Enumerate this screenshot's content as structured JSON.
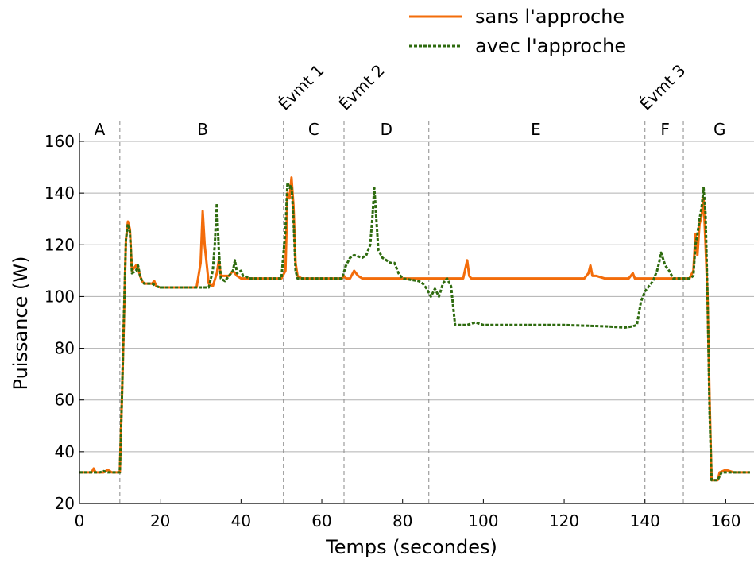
{
  "chart_data": {
    "type": "line",
    "title": "",
    "xlabel": "Temps (secondes)",
    "ylabel": "Puissance (W)",
    "xlim": [
      0,
      167
    ],
    "ylim": [
      20,
      162
    ],
    "xticks": [
      0,
      20,
      40,
      60,
      80,
      100,
      120,
      140,
      160
    ],
    "yticks": [
      20,
      40,
      60,
      80,
      100,
      120,
      140,
      160
    ],
    "grid": "horizontal",
    "legend_position": "top-right",
    "phase_boundaries": [
      10,
      50.5,
      65.5,
      86.5,
      140,
      149.5
    ],
    "phases": [
      {
        "label": "A",
        "x": 5
      },
      {
        "label": "B",
        "x": 30.5
      },
      {
        "label": "C",
        "x": 58
      },
      {
        "label": "D",
        "x": 76
      },
      {
        "label": "E",
        "x": 113
      },
      {
        "label": "F",
        "x": 145
      },
      {
        "label": "G",
        "x": 158.5
      }
    ],
    "events": [
      {
        "label": "Évmt 1",
        "x": 50.5
      },
      {
        "label": "Évmt 2",
        "x": 65.5
      },
      {
        "label": "Évmt 3",
        "x": 140
      }
    ],
    "series": [
      {
        "name": "sans l'approche",
        "color": "#f36c0a",
        "dash": "solid",
        "points": [
          [
            0,
            32
          ],
          [
            3,
            32
          ],
          [
            3.5,
            33.5
          ],
          [
            4,
            32
          ],
          [
            6,
            32
          ],
          [
            7,
            33
          ],
          [
            8,
            32
          ],
          [
            10,
            32
          ],
          [
            10.5,
            60
          ],
          [
            11,
            90
          ],
          [
            11.5,
            122
          ],
          [
            12,
            129
          ],
          [
            12.5,
            126
          ],
          [
            13,
            110
          ],
          [
            14,
            112
          ],
          [
            14.5,
            111
          ],
          [
            15,
            108
          ],
          [
            15.5,
            106
          ],
          [
            16,
            105
          ],
          [
            18,
            105
          ],
          [
            18.5,
            106
          ],
          [
            19,
            104
          ],
          [
            20,
            103.5
          ],
          [
            28,
            103.5
          ],
          [
            29,
            103.5
          ],
          [
            30,
            113
          ],
          [
            30.5,
            133
          ],
          [
            31,
            120
          ],
          [
            32,
            105
          ],
          [
            33,
            104
          ],
          [
            34,
            109
          ],
          [
            34.5,
            114
          ],
          [
            35,
            108
          ],
          [
            37,
            108
          ],
          [
            38,
            110
          ],
          [
            39,
            108
          ],
          [
            40,
            107
          ],
          [
            50,
            107
          ],
          [
            51,
            110
          ],
          [
            51.5,
            140
          ],
          [
            52,
            138
          ],
          [
            52.5,
            146
          ],
          [
            53,
            135
          ],
          [
            53.5,
            113
          ],
          [
            54,
            108
          ],
          [
            55,
            107
          ],
          [
            65,
            107
          ],
          [
            65.5,
            108
          ],
          [
            66,
            107
          ],
          [
            67,
            107
          ],
          [
            68,
            110
          ],
          [
            69,
            108
          ],
          [
            70,
            107
          ],
          [
            80,
            107
          ],
          [
            90,
            107
          ],
          [
            95,
            107
          ],
          [
            96,
            114
          ],
          [
            96.5,
            108
          ],
          [
            97,
            107
          ],
          [
            125,
            107
          ],
          [
            126,
            109
          ],
          [
            126.5,
            112
          ],
          [
            127,
            108
          ],
          [
            128,
            108
          ],
          [
            130,
            107
          ],
          [
            136,
            107
          ],
          [
            137,
            109
          ],
          [
            137.5,
            107
          ],
          [
            150,
            107
          ],
          [
            151,
            107
          ],
          [
            152,
            110
          ],
          [
            152.5,
            124
          ],
          [
            153,
            116
          ],
          [
            153.5,
            128
          ],
          [
            154,
            131
          ],
          [
            154.5,
            138
          ],
          [
            155,
            120
          ],
          [
            155.5,
            100
          ],
          [
            156,
            60
          ],
          [
            156.5,
            29
          ],
          [
            158,
            29
          ],
          [
            158.5,
            32
          ],
          [
            160,
            33
          ],
          [
            162,
            32
          ],
          [
            166,
            32
          ]
        ]
      },
      {
        "name": "avec l'approche",
        "color": "#2e6b0f",
        "dash": "dotted",
        "points": [
          [
            0,
            32
          ],
          [
            5,
            32
          ],
          [
            6,
            32.5
          ],
          [
            7,
            32
          ],
          [
            10,
            32
          ],
          [
            10.5,
            60
          ],
          [
            11,
            92
          ],
          [
            11.5,
            122
          ],
          [
            12,
            128
          ],
          [
            12.5,
            125
          ],
          [
            13,
            109
          ],
          [
            14,
            110
          ],
          [
            14.5,
            112
          ],
          [
            15,
            108
          ],
          [
            15.5,
            106
          ],
          [
            16,
            105
          ],
          [
            18,
            105
          ],
          [
            19,
            104
          ],
          [
            20,
            103.5
          ],
          [
            32,
            103.5
          ],
          [
            33,
            110
          ],
          [
            33.5,
            120
          ],
          [
            34,
            136
          ],
          [
            34.5,
            118
          ],
          [
            35,
            107
          ],
          [
            36,
            106
          ],
          [
            37,
            108
          ],
          [
            38,
            110
          ],
          [
            38.5,
            114
          ],
          [
            39,
            109
          ],
          [
            40,
            110
          ],
          [
            40.5,
            108
          ],
          [
            41,
            108
          ],
          [
            42,
            107
          ],
          [
            50,
            107
          ],
          [
            51,
            126
          ],
          [
            51.5,
            144
          ],
          [
            52,
            142
          ],
          [
            52.5,
            143
          ],
          [
            53,
            130
          ],
          [
            53.5,
            110
          ],
          [
            54,
            107
          ],
          [
            65,
            107
          ],
          [
            66,
            112
          ],
          [
            67,
            115
          ],
          [
            68,
            116
          ],
          [
            70,
            115
          ],
          [
            71,
            116
          ],
          [
            72,
            120
          ],
          [
            72.5,
            130
          ],
          [
            73,
            142
          ],
          [
            73.5,
            130
          ],
          [
            74,
            118
          ],
          [
            75,
            115
          ],
          [
            76,
            114
          ],
          [
            77,
            113
          ],
          [
            78,
            113
          ],
          [
            79,
            109
          ],
          [
            80,
            107
          ],
          [
            84,
            106
          ],
          [
            85,
            105
          ],
          [
            86,
            103
          ],
          [
            87,
            100
          ],
          [
            88,
            103
          ],
          [
            89,
            100
          ],
          [
            90,
            105
          ],
          [
            91,
            107
          ],
          [
            92,
            104
          ],
          [
            93,
            89
          ],
          [
            96,
            89
          ],
          [
            98,
            90
          ],
          [
            100,
            89
          ],
          [
            110,
            89
          ],
          [
            120,
            89
          ],
          [
            130,
            88.5
          ],
          [
            135,
            88
          ],
          [
            137,
            88.5
          ],
          [
            138,
            89
          ],
          [
            139,
            98
          ],
          [
            140,
            102
          ],
          [
            141,
            104
          ],
          [
            142,
            106
          ],
          [
            143,
            110
          ],
          [
            143.5,
            113
          ],
          [
            144,
            117
          ],
          [
            145,
            112
          ],
          [
            146,
            110
          ],
          [
            147,
            107
          ],
          [
            148,
            107
          ],
          [
            150,
            107
          ],
          [
            151,
            107
          ],
          [
            152,
            108
          ],
          [
            152.5,
            120
          ],
          [
            153,
            124
          ],
          [
            153.5,
            130
          ],
          [
            154,
            134
          ],
          [
            154.5,
            142
          ],
          [
            155,
            132
          ],
          [
            155.5,
            100
          ],
          [
            156,
            55
          ],
          [
            156.5,
            29
          ],
          [
            158,
            29
          ],
          [
            159,
            32
          ],
          [
            166,
            32
          ]
        ]
      }
    ]
  }
}
